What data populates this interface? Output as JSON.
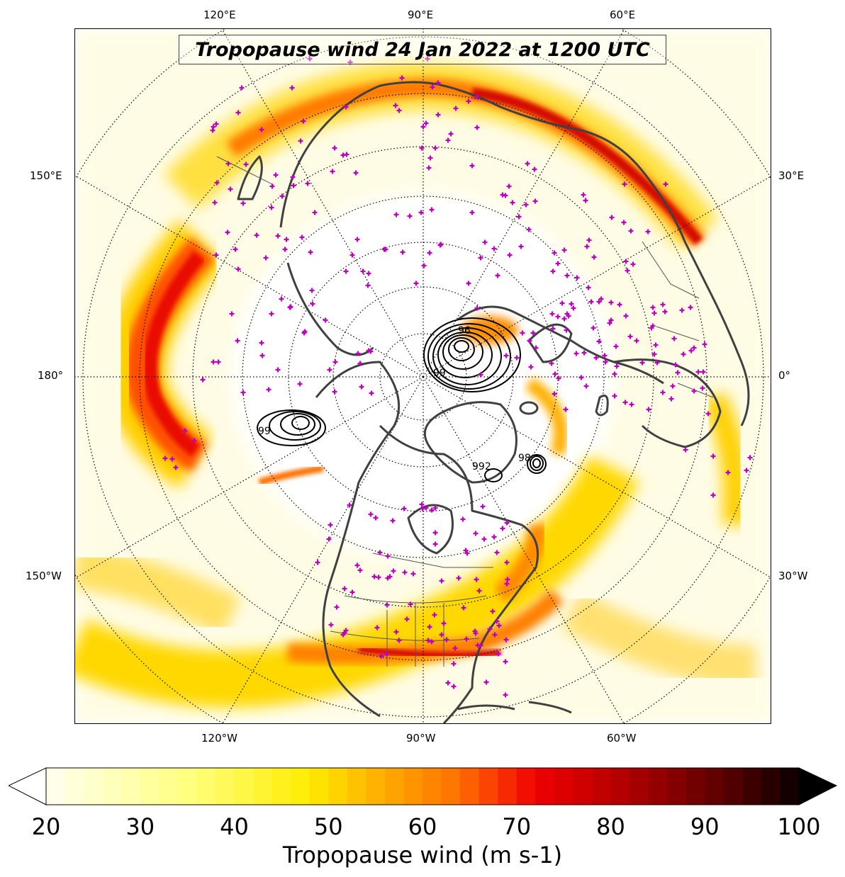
{
  "title": "Tropopause wind 24 Jan 2022 at 1200 UTC",
  "lon_labels": {
    "top": [
      "120°E",
      "90°E",
      "60°E"
    ],
    "left": [
      "150°E",
      "180°",
      "150°W"
    ],
    "right": [
      "30°E",
      "0°",
      "30°W"
    ],
    "bottom": [
      "120°W",
      "90°W",
      "60°W"
    ]
  },
  "contour_labels": [
    "96",
    "99",
    "99",
    "992",
    "98"
  ],
  "colorbar": {
    "label": "Tropopause wind (m s-1)",
    "ticks": [
      "20",
      "30",
      "40",
      "50",
      "60",
      "70",
      "80",
      "90",
      "100"
    ],
    "min": 20,
    "max": 100,
    "extend": "both",
    "colormap": "hot_r"
  },
  "colors": {
    "coast": "#404040",
    "markers": "#c000c0",
    "grid": "#000000"
  }
}
